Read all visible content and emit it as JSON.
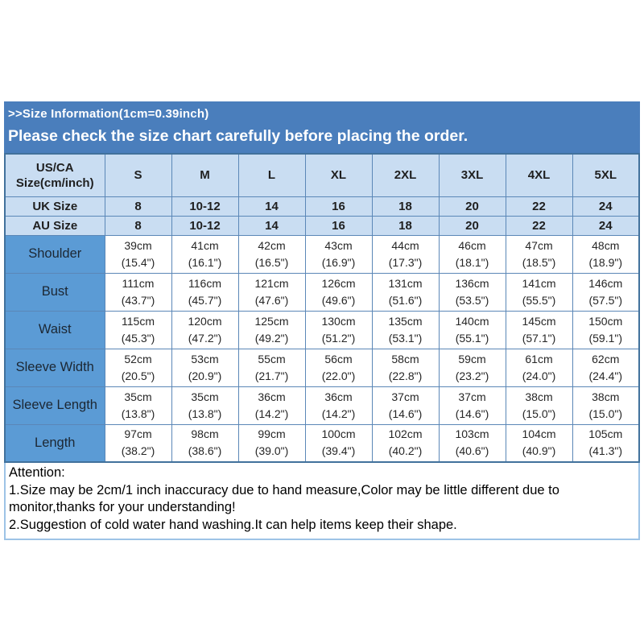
{
  "banner": {
    "line1": ">>Size Information(1cm=0.39inch)",
    "line2": "Please check the size chart carefully before placing the order."
  },
  "table": {
    "corner_label_line1": "US/CA",
    "corner_label_line2": "Size(cm/inch)",
    "sizes": [
      "S",
      "M",
      "L",
      "XL",
      "2XL",
      "3XL",
      "4XL",
      "5XL"
    ],
    "uk_row": {
      "label": "UK Size",
      "values": [
        "8",
        "10-12",
        "14",
        "16",
        "18",
        "20",
        "22",
        "24"
      ]
    },
    "au_row": {
      "label": "AU Size",
      "values": [
        "8",
        "10-12",
        "14",
        "16",
        "18",
        "20",
        "22",
        "24"
      ]
    },
    "measurements": [
      {
        "label": "Shoulder",
        "cm": [
          "39cm",
          "41cm",
          "42cm",
          "43cm",
          "44cm",
          "46cm",
          "47cm",
          "48cm"
        ],
        "inch": [
          "(15.4\")",
          "(16.1\")",
          "(16.5\")",
          "(16.9\")",
          "(17.3\")",
          "(18.1\")",
          "(18.5\")",
          "(18.9\")"
        ]
      },
      {
        "label": "Bust",
        "cm": [
          "111cm",
          "116cm",
          "121cm",
          "126cm",
          "131cm",
          "136cm",
          "141cm",
          "146cm"
        ],
        "inch": [
          "(43.7\")",
          "(45.7\")",
          "(47.6\")",
          "(49.6\")",
          "(51.6\")",
          "(53.5\")",
          "(55.5\")",
          "(57.5\")"
        ]
      },
      {
        "label": "Waist",
        "cm": [
          "115cm",
          "120cm",
          "125cm",
          "130cm",
          "135cm",
          "140cm",
          "145cm",
          "150cm"
        ],
        "inch": [
          "(45.3\")",
          "(47.2\")",
          "(49.2\")",
          "(51.2\")",
          "(53.1\")",
          "(55.1\")",
          "(57.1\")",
          "(59.1\")"
        ]
      },
      {
        "label": "Sleeve Width",
        "cm": [
          "52cm",
          "53cm",
          "55cm",
          "56cm",
          "58cm",
          "59cm",
          "61cm",
          "62cm"
        ],
        "inch": [
          "(20.5\")",
          "(20.9\")",
          "(21.7\")",
          "(22.0\")",
          "(22.8\")",
          "(23.2\")",
          "(24.0\")",
          "(24.4\")"
        ]
      },
      {
        "label": "Sleeve Length",
        "cm": [
          "35cm",
          "35cm",
          "36cm",
          "36cm",
          "37cm",
          "37cm",
          "38cm",
          "38cm"
        ],
        "inch": [
          "(13.8\")",
          "(13.8\")",
          "(14.2\")",
          "(14.2\")",
          "(14.6\")",
          "(14.6\")",
          "(15.0\")",
          "(15.0\")"
        ]
      },
      {
        "label": "Length",
        "cm": [
          "97cm",
          "98cm",
          "99cm",
          "100cm",
          "102cm",
          "103cm",
          "104cm",
          "105cm"
        ],
        "inch": [
          "(38.2\")",
          "(38.6\")",
          "(39.0\")",
          "(39.4\")",
          "(40.2\")",
          "(40.6\")",
          "(40.9\")",
          "(41.3\")"
        ]
      }
    ]
  },
  "attention": {
    "title": "Attention:",
    "note1": "1.Size may be 2cm/1 inch inaccuracy due to hand measure,Color may be little different due to monitor,thanks for your understanding!",
    "note2": "2.Suggestion of cold water hand washing.It can help items keep their shape."
  },
  "colors": {
    "banner_blue": "#4a7ebc",
    "header_light_blue": "#c9ddf2",
    "label_blue": "#5b9bd5",
    "border_blue": "#5b87b7",
    "outer_border_blue": "#41719c",
    "attention_border": "#9dc3e6",
    "text_dark": "#1f1f1f"
  }
}
